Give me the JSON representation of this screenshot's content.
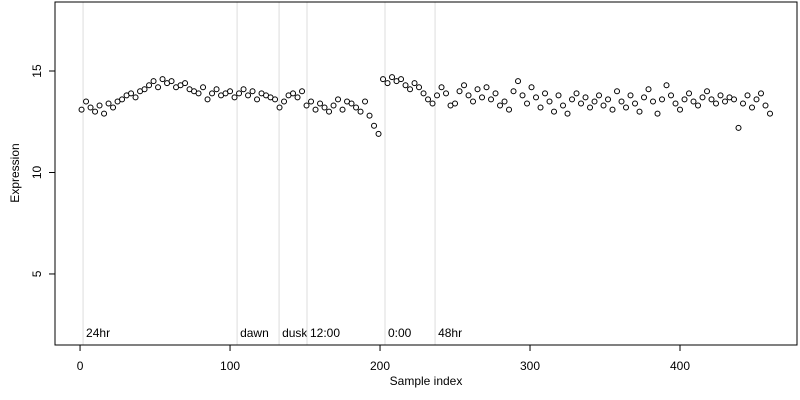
{
  "chart_data": {
    "type": "scatter",
    "x_label": "Sample index",
    "y_label": "Expression",
    "xlim": [
      -16.7,
      478
    ],
    "ylim": [
      1.5,
      18.4
    ],
    "xticks": [
      0,
      100,
      200,
      300,
      400
    ],
    "yticks": [
      5,
      10,
      15
    ],
    "grid": false,
    "color": "#000000",
    "fill": "#ffffff",
    "annotations": [
      {
        "x": 2,
        "label": "24hr"
      },
      {
        "x": 104.7,
        "label": "dawn"
      },
      {
        "x": 132.7,
        "label": "dusk"
      },
      {
        "x": 151.3,
        "label": "12:00"
      },
      {
        "x": 203.3,
        "label": "0:00"
      },
      {
        "x": 236.7,
        "label": "48hr"
      }
    ],
    "x": [
      1,
      4,
      7,
      10,
      13,
      16,
      19,
      22,
      25,
      28,
      31,
      34,
      37,
      40,
      43,
      46,
      49,
      52,
      55,
      58,
      61,
      64,
      67,
      70,
      73,
      76,
      79,
      82,
      85,
      88,
      91,
      94,
      97,
      100,
      103,
      106,
      109,
      112,
      115,
      118,
      121,
      124,
      127,
      130,
      133,
      136,
      139,
      142,
      145,
      148,
      151,
      154,
      157,
      160,
      163,
      166,
      169,
      172,
      175,
      178,
      181,
      184,
      187,
      190,
      193,
      196,
      199,
      202,
      205,
      208,
      211,
      214,
      217,
      220,
      223,
      226,
      229,
      232,
      235,
      238,
      241,
      244,
      247,
      250,
      253,
      256,
      259,
      262,
      265,
      268,
      271,
      274,
      277,
      280,
      283,
      286,
      289,
      292,
      295,
      298,
      301,
      304,
      307,
      310,
      313,
      316,
      319,
      322,
      325,
      328,
      331,
      334,
      337,
      340,
      343,
      346,
      349,
      352,
      355,
      358,
      361,
      364,
      367,
      370,
      373,
      376,
      379,
      382,
      385,
      388,
      391,
      394,
      397,
      400,
      403,
      406,
      409,
      412,
      415,
      418,
      421,
      424,
      427,
      430,
      433,
      436,
      439,
      442,
      445,
      448,
      451,
      454,
      457,
      460
    ],
    "values": [
      13.1,
      13.5,
      13.2,
      13.0,
      13.3,
      12.9,
      13.4,
      13.2,
      13.5,
      13.6,
      13.8,
      13.9,
      13.7,
      14.0,
      14.1,
      14.3,
      14.5,
      14.2,
      14.6,
      14.4,
      14.5,
      14.2,
      14.3,
      14.4,
      14.1,
      14.0,
      13.9,
      14.2,
      13.6,
      13.9,
      14.1,
      13.8,
      13.9,
      14.0,
      13.7,
      13.9,
      14.1,
      13.8,
      14.0,
      13.6,
      13.9,
      13.8,
      13.7,
      13.6,
      13.2,
      13.5,
      13.8,
      13.9,
      13.7,
      14.0,
      13.3,
      13.5,
      13.1,
      13.4,
      13.2,
      13.0,
      13.3,
      13.6,
      13.1,
      13.5,
      13.4,
      13.2,
      13.0,
      13.5,
      12.8,
      12.3,
      11.9,
      14.6,
      14.4,
      14.7,
      14.5,
      14.6,
      14.3,
      14.1,
      14.4,
      14.2,
      13.9,
      13.6,
      13.4,
      13.8,
      14.2,
      13.9,
      13.3,
      13.4,
      14.0,
      14.3,
      13.8,
      13.5,
      14.1,
      13.7,
      14.2,
      13.6,
      13.9,
      13.3,
      13.5,
      13.1,
      14.0,
      14.5,
      13.8,
      13.4,
      14.2,
      13.7,
      13.2,
      13.9,
      13.5,
      13.0,
      13.8,
      13.3,
      12.9,
      13.6,
      13.9,
      13.4,
      13.7,
      13.2,
      13.5,
      13.8,
      13.3,
      13.6,
      13.1,
      14.0,
      13.5,
      13.2,
      13.8,
      13.4,
      13.0,
      13.7,
      14.1,
      13.5,
      12.9,
      13.6,
      14.3,
      13.8,
      13.4,
      13.1,
      13.6,
      13.9,
      13.5,
      13.3,
      13.7,
      14.0,
      13.6,
      13.4,
      13.8,
      13.5,
      13.7,
      13.6,
      12.2,
      13.4,
      13.8,
      13.2,
      13.6,
      13.9,
      13.3,
      12.9
    ]
  }
}
